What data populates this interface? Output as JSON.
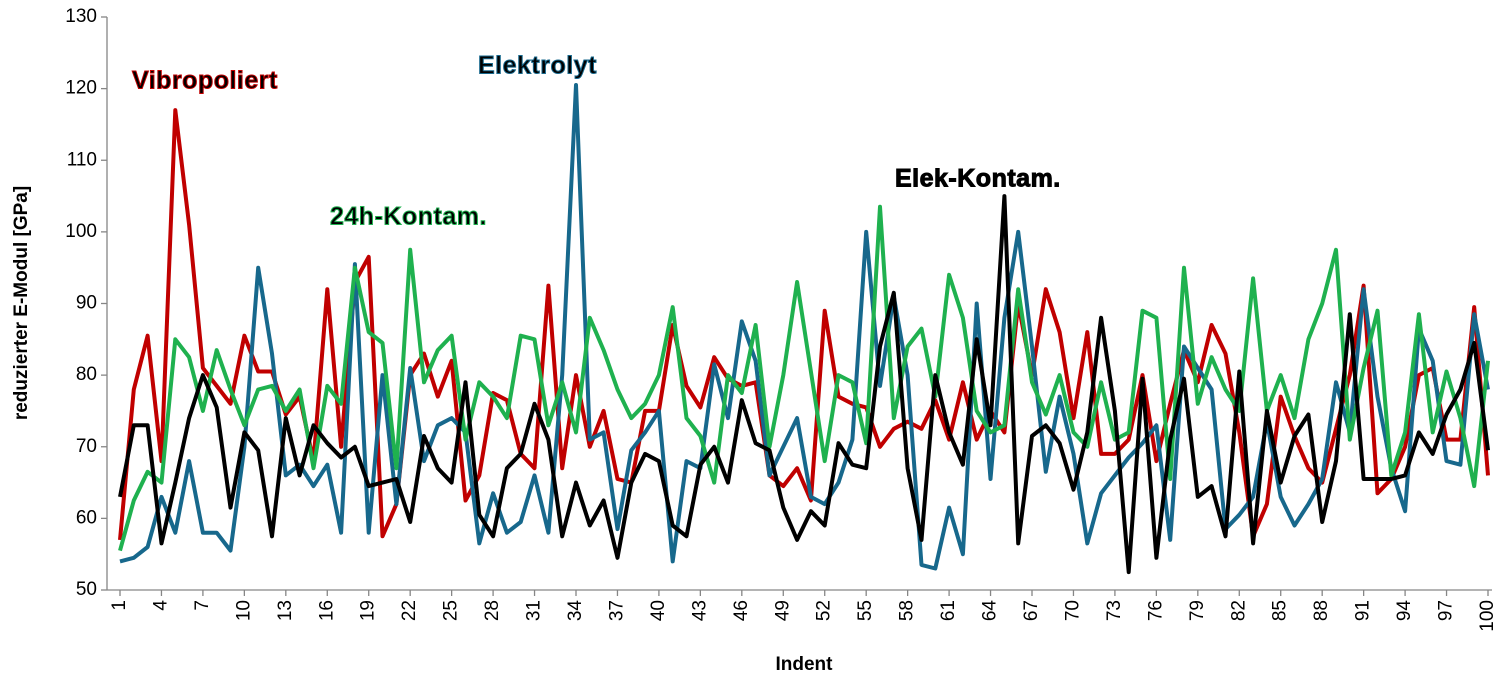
{
  "chart_data": {
    "type": "line",
    "xlabel": "Indent",
    "ylabel": "reduzierter E-Modul [GPa]",
    "x": [
      1,
      2,
      3,
      4,
      5,
      6,
      7,
      8,
      9,
      10,
      11,
      12,
      13,
      14,
      15,
      16,
      17,
      18,
      19,
      20,
      21,
      22,
      23,
      24,
      25,
      26,
      27,
      28,
      29,
      30,
      31,
      32,
      33,
      34,
      35,
      36,
      37,
      38,
      39,
      40,
      41,
      42,
      43,
      44,
      45,
      46,
      47,
      48,
      49,
      50,
      51,
      52,
      53,
      54,
      55,
      56,
      57,
      58,
      59,
      60,
      61,
      62,
      63,
      64,
      65,
      66,
      67,
      68,
      69,
      70,
      71,
      72,
      73,
      74,
      75,
      76,
      77,
      78,
      79,
      80,
      81,
      82,
      83,
      84,
      85,
      86,
      87,
      88,
      89,
      90,
      91,
      92,
      93,
      94,
      95,
      96,
      97,
      98,
      99,
      100
    ],
    "xlim": [
      1,
      100
    ],
    "xticks": [
      1,
      4,
      7,
      10,
      13,
      16,
      19,
      22,
      25,
      28,
      31,
      34,
      37,
      40,
      43,
      46,
      49,
      52,
      55,
      58,
      61,
      64,
      67,
      70,
      73,
      76,
      79,
      82,
      85,
      88,
      91,
      94,
      97,
      100
    ],
    "ylim": [
      50,
      130
    ],
    "yticks": [
      50,
      60,
      70,
      80,
      90,
      100,
      110,
      120,
      130
    ],
    "grid": false,
    "series": [
      {
        "name": "Vibropoliert",
        "color": "#c00000",
        "values": [
          57,
          78,
          85.5,
          68,
          117,
          101,
          81,
          78.5,
          76,
          85.5,
          80.5,
          80.5,
          74.5,
          77,
          68,
          92,
          70,
          93,
          96.5,
          57.5,
          62,
          80,
          83,
          77,
          82,
          62.5,
          66,
          77.5,
          76.5,
          69,
          67,
          92.5,
          67,
          80,
          70,
          75,
          65.5,
          65,
          75,
          75,
          87,
          78.5,
          75.5,
          82.5,
          79.5,
          78.5,
          79,
          66,
          64.5,
          67,
          62.5,
          89,
          77,
          76,
          75.5,
          70,
          72.5,
          73.5,
          72.5,
          76.5,
          71,
          79,
          71,
          75,
          72,
          90,
          80,
          92,
          86,
          74,
          86,
          69,
          69,
          71,
          80,
          68,
          76,
          83.5,
          79,
          87,
          83,
          72,
          57.5,
          62,
          77,
          71.5,
          67,
          65,
          72.5,
          80,
          92.5,
          63.5,
          65.5,
          70,
          80,
          81,
          71,
          71,
          89.5,
          66
        ]
      },
      {
        "name": "Elektrolyt",
        "color": "#17688c",
        "values": [
          54,
          54.5,
          56,
          63,
          58,
          68,
          58,
          58,
          55.5,
          70,
          95,
          83,
          66,
          67.5,
          64.5,
          67.5,
          58,
          95.5,
          58,
          80,
          62,
          81,
          68,
          73,
          74,
          72,
          56.5,
          63.5,
          58,
          59.5,
          66,
          58,
          80,
          120.5,
          71,
          72,
          58.5,
          69.5,
          72,
          75,
          54,
          68,
          67,
          81.5,
          74,
          87.5,
          82,
          66,
          70,
          74,
          63,
          62,
          65,
          71,
          100,
          78.5,
          91,
          80,
          53.5,
          53,
          61.5,
          55,
          90,
          65.5,
          88,
          100,
          84,
          66.5,
          77,
          69,
          56.5,
          63.5,
          66,
          68.5,
          70.5,
          73,
          57,
          84,
          81,
          78,
          58.5,
          60.5,
          63,
          73.5,
          63,
          59,
          62,
          65.5,
          79,
          72,
          92,
          77,
          67,
          61,
          86.5,
          82,
          68,
          67.5,
          88.5,
          78
        ]
      },
      {
        "name": "24h-Kontam.",
        "color": "#1fb14f",
        "values": [
          55.5,
          62.5,
          66.5,
          65,
          85,
          82.5,
          75,
          83.5,
          78,
          73,
          78,
          78.5,
          75,
          78,
          67,
          78.5,
          76,
          95,
          86,
          84.5,
          67,
          97.5,
          79,
          83.5,
          85.5,
          71,
          79,
          77,
          74,
          85.5,
          85,
          73,
          79,
          72,
          88,
          83.5,
          78,
          74,
          76,
          80,
          89.5,
          74,
          71.5,
          65,
          80,
          77.5,
          87,
          70,
          80,
          93,
          80.5,
          68,
          80,
          79,
          70.5,
          103.5,
          74,
          84,
          86.5,
          77,
          94,
          88,
          75,
          72,
          73,
          92,
          79,
          74.5,
          80,
          72,
          70,
          79,
          71,
          72,
          89,
          88,
          65.5,
          95,
          76,
          82.5,
          78,
          75,
          93.5,
          75,
          80,
          74,
          85,
          90,
          97.5,
          71,
          81,
          89,
          66,
          72,
          88.5,
          72,
          80.5,
          74,
          64.5,
          82
        ]
      },
      {
        "name": "Elek-Kontam.",
        "color": "#000000",
        "values": [
          63,
          73,
          73,
          56.5,
          65,
          74,
          80,
          75.5,
          61.5,
          72,
          69.5,
          57.5,
          74,
          66,
          73,
          70.5,
          68.5,
          70,
          64.5,
          65,
          65.5,
          59.5,
          71.5,
          67,
          65,
          79,
          60.5,
          57.5,
          67,
          69,
          76,
          71,
          57.5,
          65,
          59,
          62.5,
          54.5,
          65,
          69,
          68,
          59,
          57.5,
          67.5,
          70,
          65,
          76.5,
          70.5,
          69.5,
          61.5,
          57,
          61,
          59,
          70.5,
          67.5,
          67,
          84,
          91.5,
          67,
          57,
          80,
          72,
          67.5,
          85,
          73,
          105,
          56.5,
          71.5,
          73,
          70.5,
          64,
          72,
          88,
          75,
          52.5,
          79.5,
          54.5,
          71,
          79.5,
          63,
          64.5,
          57.5,
          80.5,
          56.5,
          75,
          65,
          71.5,
          74.5,
          59.5,
          68,
          88.5,
          65.5,
          65.5,
          65.5,
          66,
          72,
          69,
          74.5,
          78,
          84.5,
          69.5
        ]
      }
    ]
  }
}
